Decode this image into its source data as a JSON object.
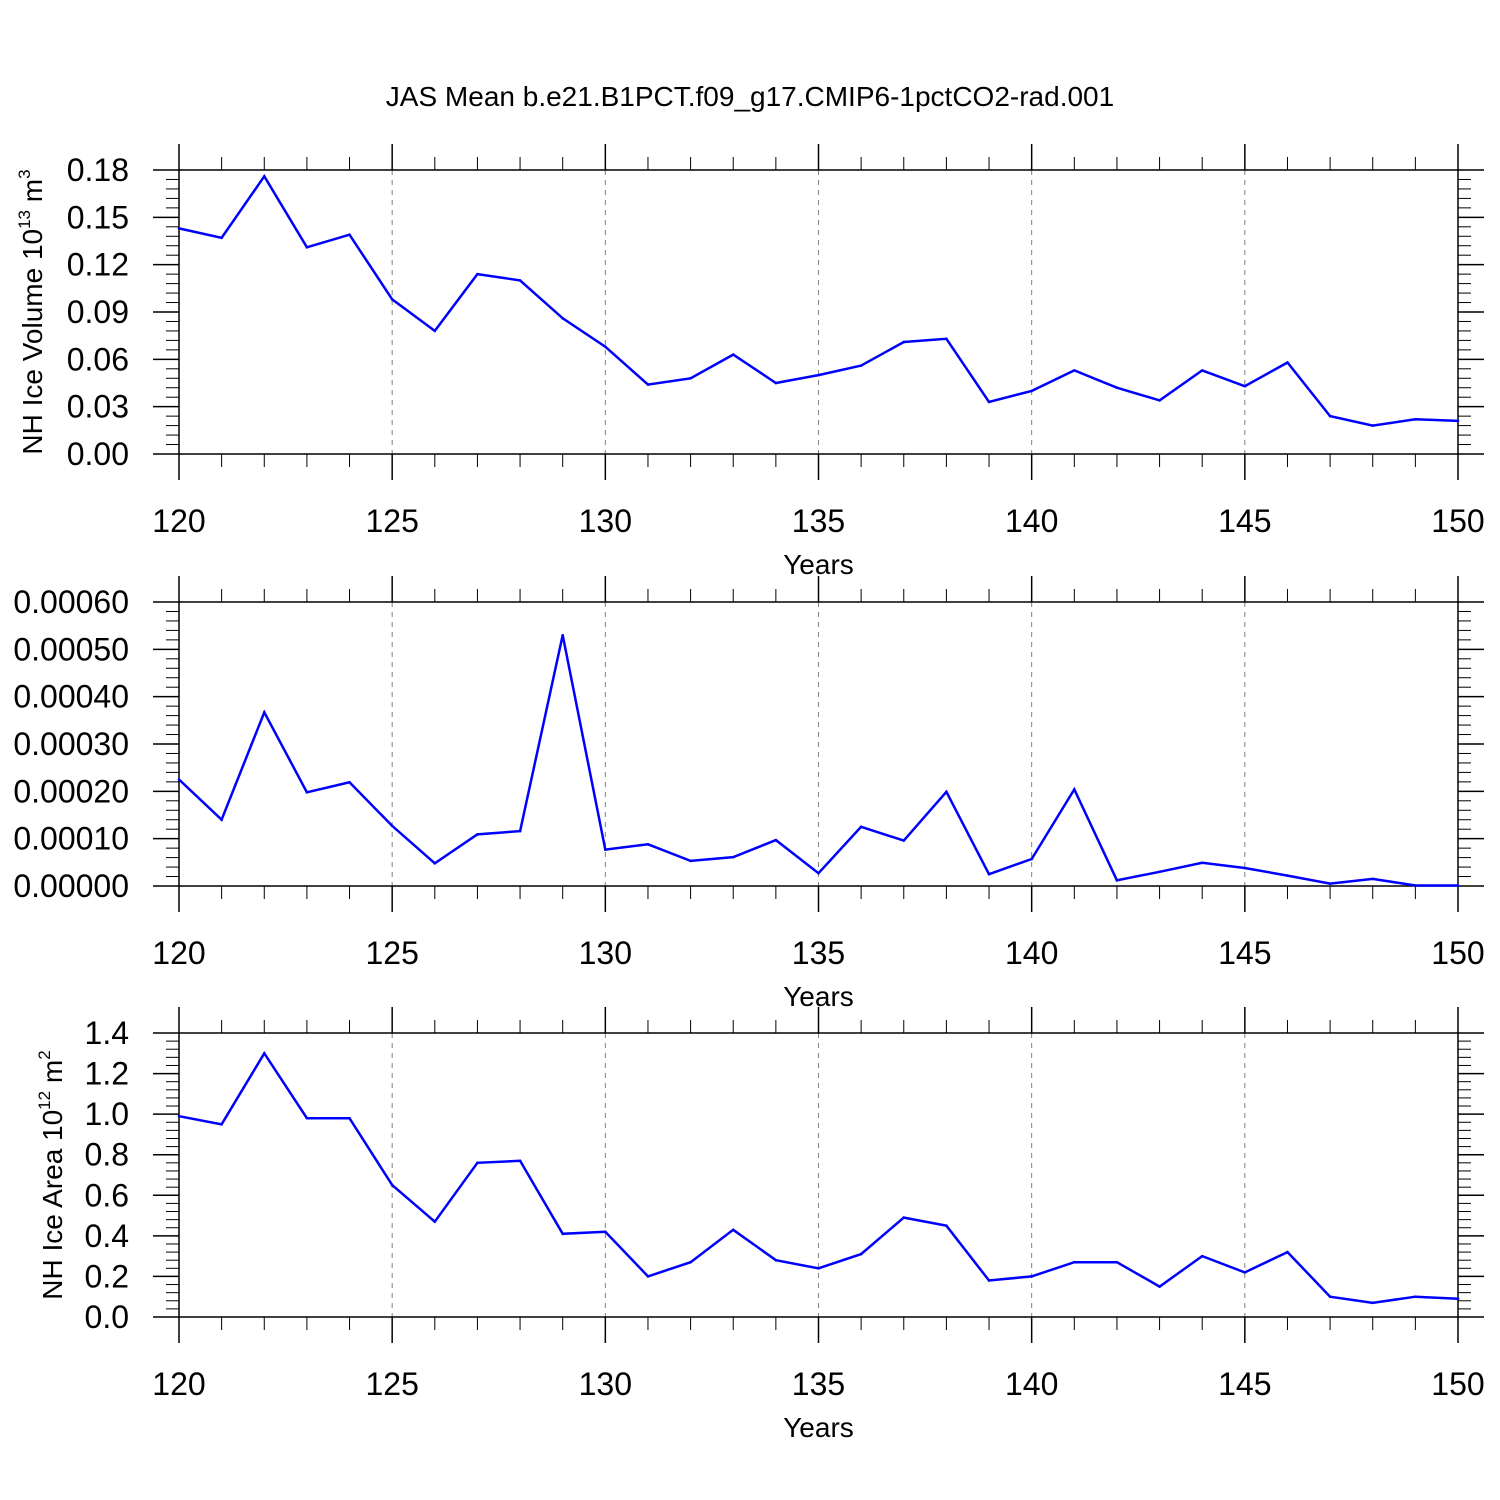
{
  "title": "JAS Mean b.e21.B1PCT.f09_g17.CMIP6-1pctCO2-rad.001",
  "colors": {
    "line": "#0000ff",
    "axis": "#000000",
    "grid": "#808080"
  },
  "chart_data": [
    {
      "type": "line",
      "xlabel": "Years",
      "ylabel": {
        "text": "NH Ice Volume 10",
        "sup1": "13",
        "unit": " m",
        "sup2": "3"
      },
      "xlim": [
        120,
        150
      ],
      "ylim": [
        0,
        0.18
      ],
      "xticks": [
        "120",
        "125",
        "130",
        "135",
        "140",
        "145",
        "150"
      ],
      "yticks": [
        "0.00",
        "0.03",
        "0.06",
        "0.09",
        "0.12",
        "0.15",
        "0.18"
      ],
      "grid": "vertical dashed at major x ticks",
      "x": [
        120,
        121,
        122,
        123,
        124,
        125,
        126,
        127,
        128,
        129,
        130,
        131,
        132,
        133,
        134,
        135,
        136,
        137,
        138,
        139,
        140,
        141,
        142,
        143,
        144,
        145,
        146,
        147,
        148,
        149,
        150
      ],
      "values": [
        0.143,
        0.137,
        0.176,
        0.131,
        0.139,
        0.098,
        0.078,
        0.114,
        0.11,
        0.086,
        0.068,
        0.044,
        0.048,
        0.063,
        0.045,
        0.05,
        0.056,
        0.071,
        0.073,
        0.033,
        0.04,
        0.053,
        0.042,
        0.034,
        0.053,
        0.043,
        0.058,
        0.024,
        0.018,
        0.022,
        0.021
      ]
    },
    {
      "type": "line",
      "xlabel": "Years",
      "xlim": [
        120,
        150
      ],
      "ylim": [
        0,
        0.0006
      ],
      "xticks": [
        "120",
        "125",
        "130",
        "135",
        "140",
        "145",
        "150"
      ],
      "yticks": [
        "0.00000",
        "0.00010",
        "0.00020",
        "0.00030",
        "0.00040",
        "0.00050",
        "0.00060"
      ],
      "grid": "vertical dashed at major x ticks",
      "x": [
        120,
        121,
        122,
        123,
        124,
        125,
        126,
        127,
        128,
        129,
        130,
        131,
        132,
        133,
        134,
        135,
        136,
        137,
        138,
        139,
        140,
        141,
        142,
        143,
        144,
        145,
        146,
        147,
        148,
        149,
        150
      ],
      "values": [
        0.000225,
        0.00014,
        0.000367,
        0.000198,
        0.000219,
        0.000127,
        4.8e-05,
        0.000109,
        0.000116,
        0.00053,
        7.7e-05,
        8.8e-05,
        5.3e-05,
        6.1e-05,
        9.7e-05,
        2.7e-05,
        0.000125,
        9.6e-05,
        0.000199,
        2.5e-05,
        5.7e-05,
        0.000204,
        1.2e-05,
        3e-05,
        4.9e-05,
        3.8e-05,
        2.2e-05,
        5e-06,
        1.5e-05,
        1e-06,
        1e-06
      ]
    },
    {
      "type": "line",
      "xlabel": "Years",
      "ylabel": {
        "text": "NH Ice Area 10",
        "sup1": "12",
        "unit": " m",
        "sup2": "2"
      },
      "xlim": [
        120,
        150
      ],
      "ylim": [
        0,
        1.4
      ],
      "xticks": [
        "120",
        "125",
        "130",
        "135",
        "140",
        "145",
        "150"
      ],
      "yticks": [
        "0.0",
        "0.2",
        "0.4",
        "0.6",
        "0.8",
        "1.0",
        "1.2",
        "1.4"
      ],
      "grid": "vertical dashed at major x ticks",
      "x": [
        120,
        121,
        122,
        123,
        124,
        125,
        126,
        127,
        128,
        129,
        130,
        131,
        132,
        133,
        134,
        135,
        136,
        137,
        138,
        139,
        140,
        141,
        142,
        143,
        144,
        145,
        146,
        147,
        148,
        149,
        150
      ],
      "values": [
        0.99,
        0.95,
        1.3,
        0.98,
        0.98,
        0.65,
        0.47,
        0.76,
        0.77,
        0.41,
        0.42,
        0.2,
        0.27,
        0.43,
        0.28,
        0.24,
        0.31,
        0.49,
        0.45,
        0.18,
        0.2,
        0.27,
        0.27,
        0.15,
        0.3,
        0.22,
        0.32,
        0.1,
        0.07,
        0.1,
        0.09
      ]
    }
  ]
}
